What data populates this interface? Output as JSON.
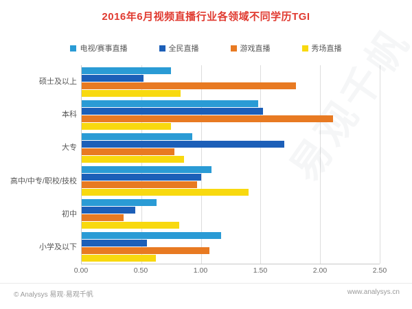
{
  "title": "2016年6月视频直播行业各领域不同学历TGI",
  "colors": {
    "title": "#e03a30",
    "axis_text": "#666666",
    "grid": "#dcdcdc"
  },
  "chart_data": {
    "type": "bar",
    "orientation": "horizontal",
    "title": "2016年6月视频直播行业各领域不同学历TGI",
    "categories": [
      "硕士及以上",
      "本科",
      "大专",
      "高中/中专/职校/技校",
      "初中",
      "小学及以下"
    ],
    "series": [
      {
        "name": "电视/赛事直播",
        "color": "#2a9bd5",
        "values": [
          0.75,
          1.48,
          0.93,
          1.09,
          0.63,
          1.17
        ]
      },
      {
        "name": "全民直播",
        "color": "#1c5fb8",
        "values": [
          0.52,
          1.52,
          1.7,
          1.0,
          0.45,
          0.55
        ]
      },
      {
        "name": "游戏直播",
        "color": "#e87a22",
        "values": [
          1.8,
          2.11,
          0.78,
          0.97,
          0.35,
          1.07
        ]
      },
      {
        "name": "秀场直播",
        "color": "#f8d90f",
        "values": [
          0.83,
          0.75,
          0.86,
          1.4,
          0.82,
          0.62
        ]
      }
    ],
    "xlim": [
      0,
      2.5
    ],
    "xticks": [
      "0.00",
      "0.50",
      "1.00",
      "1.50",
      "2.00",
      "2.50"
    ],
    "grid": true,
    "legend_position": "top"
  },
  "footer": {
    "left": "© Analysys 易观·易观千帆",
    "right": "www.analysys.cn"
  },
  "watermark": "易观千帆"
}
